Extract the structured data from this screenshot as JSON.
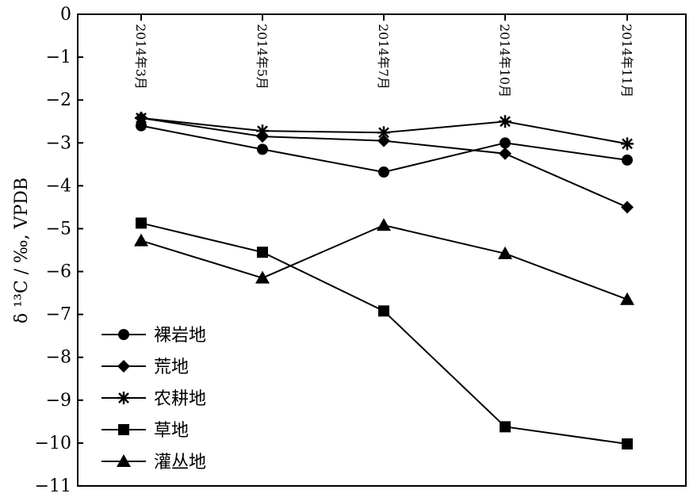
{
  "chart_data": {
    "type": "line",
    "categories": [
      "2014年3月",
      "2014年5月",
      "2014年7月",
      "2014年10月",
      "2014年11月"
    ],
    "ylabel": "δ ¹³C / ‰,  VPDB",
    "ylim": [
      -11,
      0
    ],
    "yticks": [
      "0",
      "−1",
      "−2",
      "−3",
      "−4",
      "−5",
      "−6",
      "−7",
      "−8",
      "−9",
      "−10",
      "−11"
    ],
    "legend_position": "bottom-left",
    "grid": false,
    "series": [
      {
        "name": "裸岩地",
        "marker": "circle",
        "values": [
          -2.6,
          -3.15,
          -3.68,
          -3.0,
          -3.4
        ]
      },
      {
        "name": "荒地",
        "marker": "diamond",
        "values": [
          -2.42,
          -2.85,
          -2.95,
          -3.25,
          -4.5
        ]
      },
      {
        "name": "农耕地",
        "marker": "asterisk",
        "values": [
          -2.42,
          -2.72,
          -2.76,
          -2.5,
          -3.02
        ]
      },
      {
        "name": "草地",
        "marker": "square",
        "values": [
          -4.87,
          -5.55,
          -6.92,
          -9.62,
          -10.02
        ]
      },
      {
        "name": "灌丛地",
        "marker": "triangle",
        "values": [
          -5.28,
          -6.15,
          -4.92,
          -5.58,
          -6.65
        ]
      }
    ]
  }
}
